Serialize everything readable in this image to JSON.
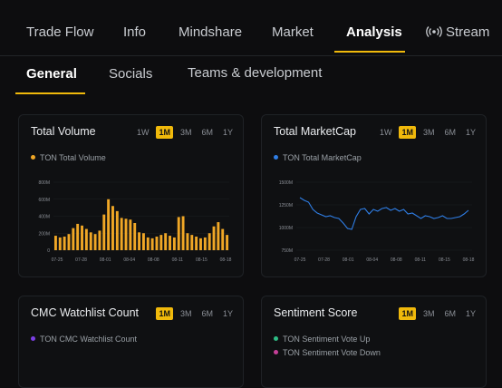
{
  "top_tabs": [
    "Trade Flow",
    "Info",
    "Mindshare",
    "Market",
    "Analysis",
    "Stream"
  ],
  "sub_tabs": [
    "General",
    "Socials",
    "Teams & development"
  ],
  "colors": {
    "accent": "#f0b90b",
    "volume": "#f0a726",
    "marketcap": "#2f7ee6",
    "watchlist": "#7b3fe4",
    "vote_up": "#2ebd85",
    "vote_down": "#c63f98"
  },
  "cards": {
    "volume": {
      "title": "Total Volume",
      "ranges": [
        "1W",
        "1M",
        "3M",
        "6M",
        "1Y"
      ],
      "selected": "1M",
      "legend": "TON Total Volume"
    },
    "marketcap": {
      "title": "Total MarketCap",
      "ranges": [
        "1W",
        "1M",
        "3M",
        "6M",
        "1Y"
      ],
      "selected": "1M",
      "legend": "TON Total MarketCap"
    },
    "watchlist": {
      "title": "CMC Watchlist Count",
      "ranges": [
        "1M",
        "3M",
        "6M",
        "1Y"
      ],
      "selected": "1M",
      "legend": "TON CMC Watchlist Count"
    },
    "sentiment": {
      "title": "Sentiment Score",
      "ranges": [
        "1M",
        "3M",
        "6M",
        "1Y"
      ],
      "selected": "1M",
      "legend_up": "TON Sentiment Vote Up",
      "legend_down": "TON Sentiment Vote Down"
    }
  },
  "chart_data": [
    {
      "type": "bar",
      "series_name": "TON Total Volume",
      "ylim": [
        0,
        800
      ],
      "y_ticks": [
        "0",
        "200M",
        "400M",
        "600M",
        "800M"
      ],
      "x_ticks": [
        "07-25",
        "07-28",
        "08-01",
        "08-04",
        "08-08",
        "08-11",
        "08-15",
        "08-18"
      ],
      "values": [
        170,
        150,
        160,
        190,
        260,
        310,
        290,
        250,
        210,
        190,
        230,
        420,
        600,
        520,
        460,
        380,
        370,
        360,
        320,
        210,
        200,
        150,
        140,
        160,
        180,
        200,
        170,
        150,
        390,
        400,
        200,
        180,
        160,
        140,
        150,
        200,
        280,
        330,
        250,
        180
      ]
    },
    {
      "type": "line",
      "series_name": "TON Total MarketCap",
      "ylim": [
        750,
        1500
      ],
      "y_ticks": [
        "750M",
        "1000M",
        "1250M",
        "1500M"
      ],
      "x_ticks": [
        "07-25",
        "07-28",
        "08-01",
        "08-04",
        "08-08",
        "08-11",
        "08-15",
        "08-18"
      ],
      "values": [
        1330,
        1300,
        1280,
        1200,
        1160,
        1140,
        1120,
        1130,
        1110,
        1100,
        1050,
        990,
        980,
        1120,
        1200,
        1210,
        1150,
        1200,
        1180,
        1210,
        1220,
        1190,
        1210,
        1180,
        1200,
        1150,
        1160,
        1130,
        1100,
        1130,
        1120,
        1100,
        1110,
        1130,
        1100,
        1100,
        1110,
        1120,
        1150,
        1190
      ]
    }
  ]
}
